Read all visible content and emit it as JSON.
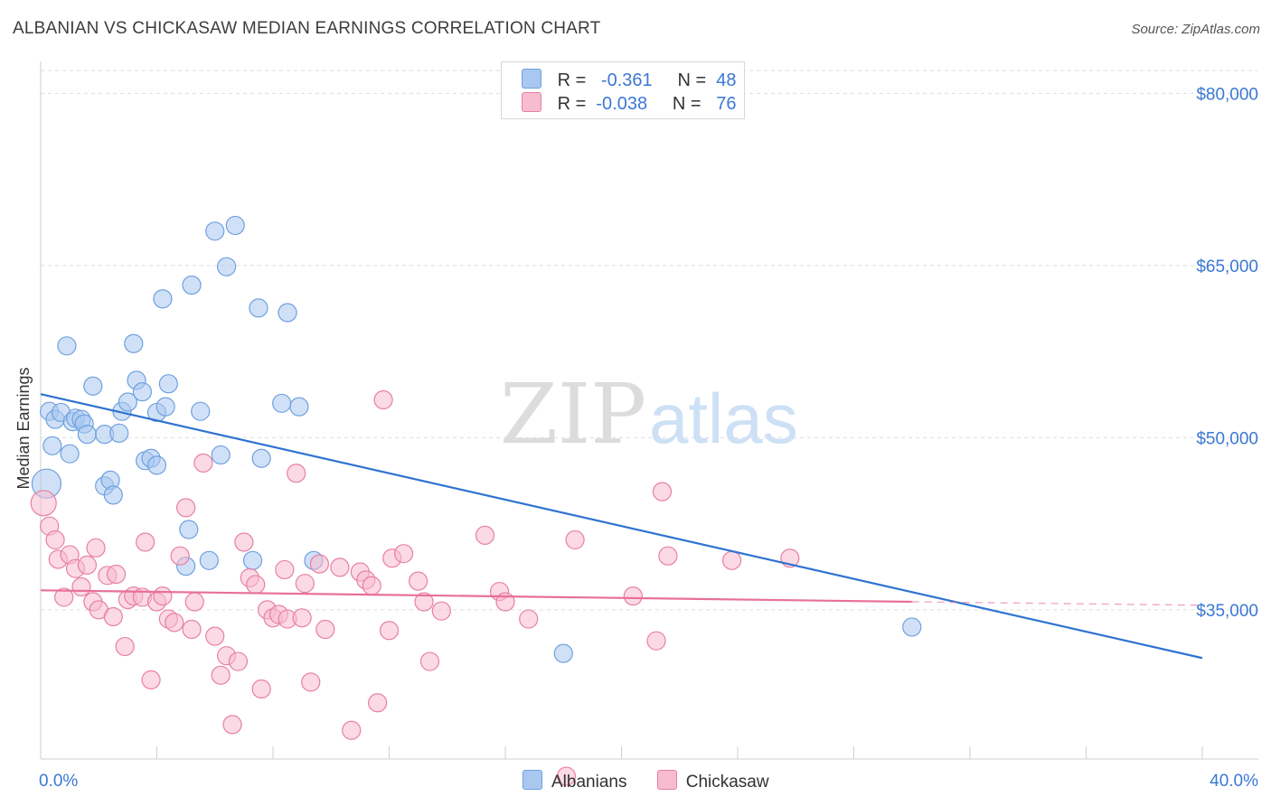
{
  "title": "ALBANIAN VS CHICKASAW MEDIAN EARNINGS CORRELATION CHART",
  "source": "Source: ZipAtlas.com",
  "watermark": {
    "zip": "ZIP",
    "atlas": "atlas"
  },
  "legend": {
    "rows": [
      {
        "r_label": "R =",
        "r_value": "-0.361",
        "n_label": "N =",
        "n_value": "48",
        "color": "#a9c8f0",
        "border": "#6fa0df"
      },
      {
        "r_label": "R =",
        "r_value": "-0.038",
        "n_label": "N =",
        "n_value": "76",
        "color": "#f7bcd0",
        "border": "#e87fa3"
      }
    ]
  },
  "bottom_legend": [
    {
      "label": "Albanians",
      "color": "#a9c8f0",
      "border": "#6fa0df"
    },
    {
      "label": "Chickasaw",
      "color": "#f7bcd0",
      "border": "#e87fa3"
    }
  ],
  "chart_data": {
    "type": "scatter",
    "title": "ALBANIAN VS CHICKASAW MEDIAN EARNINGS CORRELATION CHART",
    "xlabel": "",
    "ylabel": "Median Earnings",
    "xlim": [
      0,
      40
    ],
    "ylim": [
      22000,
      82000
    ],
    "x_tick_labels": [
      {
        "value": 0,
        "label": "0.0%"
      },
      {
        "value": 40,
        "label": "40.0%"
      }
    ],
    "x_minor_ticks": [
      4,
      8,
      12,
      16,
      20,
      24,
      28,
      32,
      36
    ],
    "y_ticks": [
      {
        "value": 35000,
        "label": "$35,000"
      },
      {
        "value": 50000,
        "label": "$50,000"
      },
      {
        "value": 65000,
        "label": "$65,000"
      },
      {
        "value": 80000,
        "label": "$80,000"
      }
    ],
    "grid": "horizontal dashed",
    "series": [
      {
        "name": "Albanians",
        "color": "#6fa0df",
        "fill": "#a9c8f0",
        "trend": {
          "x": [
            0,
            40
          ],
          "y": [
            53800,
            30800
          ],
          "color": "#2f72d0"
        },
        "points": [
          [
            0.2,
            46000,
            16
          ],
          [
            0.3,
            52300,
            10
          ],
          [
            0.4,
            49300,
            10
          ],
          [
            0.5,
            51600,
            10
          ],
          [
            0.7,
            52200,
            10
          ],
          [
            0.9,
            58000,
            10
          ],
          [
            1.0,
            48600,
            10
          ],
          [
            1.1,
            51400,
            10
          ],
          [
            1.2,
            51700,
            10
          ],
          [
            1.4,
            51600,
            10
          ],
          [
            1.5,
            51200,
            10
          ],
          [
            1.6,
            50300,
            10
          ],
          [
            1.8,
            54500,
            10
          ],
          [
            2.2,
            50300,
            10
          ],
          [
            2.2,
            45800,
            10
          ],
          [
            2.4,
            46300,
            10
          ],
          [
            2.5,
            45000,
            10
          ],
          [
            2.7,
            50400,
            10
          ],
          [
            2.8,
            52300,
            10
          ],
          [
            3.0,
            53100,
            10
          ],
          [
            3.2,
            58200,
            10
          ],
          [
            3.3,
            55000,
            10
          ],
          [
            3.5,
            54000,
            10
          ],
          [
            3.6,
            48000,
            10
          ],
          [
            3.8,
            48200,
            10
          ],
          [
            4.0,
            52200,
            10
          ],
          [
            4.0,
            47600,
            10
          ],
          [
            4.2,
            62100,
            10
          ],
          [
            4.3,
            52700,
            10
          ],
          [
            4.4,
            54700,
            10
          ],
          [
            5.0,
            38800,
            10
          ],
          [
            5.1,
            42000,
            10
          ],
          [
            5.2,
            63300,
            10
          ],
          [
            5.5,
            52300,
            10
          ],
          [
            5.8,
            39300,
            10
          ],
          [
            6.0,
            68000,
            10
          ],
          [
            6.2,
            48500,
            10
          ],
          [
            6.4,
            64900,
            10
          ],
          [
            6.7,
            68500,
            10
          ],
          [
            7.3,
            39300,
            10
          ],
          [
            7.5,
            61300,
            10
          ],
          [
            7.6,
            48200,
            10
          ],
          [
            8.3,
            53000,
            10
          ],
          [
            8.5,
            60900,
            10
          ],
          [
            8.9,
            52700,
            10
          ],
          [
            9.4,
            39300,
            10
          ],
          [
            18.0,
            31200,
            10
          ],
          [
            30.0,
            33500,
            10
          ]
        ]
      },
      {
        "name": "Chickasaw",
        "color": "#e87fa3",
        "fill": "#f7bcd0",
        "trend": {
          "x": [
            0,
            30
          ],
          "y": [
            36700,
            35700
          ],
          "dash_to": [
            40,
            35400
          ],
          "color": "#e8709a"
        },
        "points": [
          [
            0.1,
            44300,
            14
          ],
          [
            0.3,
            42300,
            10
          ],
          [
            0.5,
            41100,
            10
          ],
          [
            0.6,
            39400,
            10
          ],
          [
            0.8,
            36100,
            10
          ],
          [
            1.0,
            39800,
            10
          ],
          [
            1.2,
            38600,
            10
          ],
          [
            1.4,
            37000,
            10
          ],
          [
            1.6,
            38900,
            10
          ],
          [
            1.8,
            35700,
            10
          ],
          [
            1.9,
            40400,
            10
          ],
          [
            2.0,
            35000,
            10
          ],
          [
            2.3,
            38000,
            10
          ],
          [
            2.5,
            34400,
            10
          ],
          [
            2.6,
            38100,
            10
          ],
          [
            2.9,
            31800,
            10
          ],
          [
            3.0,
            35900,
            10
          ],
          [
            3.2,
            36200,
            10
          ],
          [
            3.5,
            36100,
            10
          ],
          [
            3.6,
            40900,
            10
          ],
          [
            3.8,
            28900,
            10
          ],
          [
            4.0,
            35700,
            10
          ],
          [
            4.2,
            36200,
            10
          ],
          [
            4.4,
            34200,
            10
          ],
          [
            4.6,
            33900,
            10
          ],
          [
            4.8,
            39700,
            10
          ],
          [
            5.0,
            43900,
            10
          ],
          [
            5.2,
            33300,
            10
          ],
          [
            5.3,
            35700,
            10
          ],
          [
            5.6,
            47800,
            10
          ],
          [
            6.0,
            32700,
            10
          ],
          [
            6.2,
            29300,
            10
          ],
          [
            6.4,
            31000,
            10
          ],
          [
            6.6,
            25000,
            10
          ],
          [
            6.8,
            30500,
            10
          ],
          [
            7.0,
            40900,
            10
          ],
          [
            7.2,
            37800,
            10
          ],
          [
            7.4,
            37200,
            10
          ],
          [
            7.6,
            28100,
            10
          ],
          [
            7.8,
            35000,
            10
          ],
          [
            8.0,
            34300,
            10
          ],
          [
            8.2,
            34600,
            10
          ],
          [
            8.4,
            38500,
            10
          ],
          [
            8.5,
            34200,
            10
          ],
          [
            8.8,
            46900,
            10
          ],
          [
            9.0,
            34300,
            10
          ],
          [
            9.1,
            37300,
            10
          ],
          [
            9.3,
            28700,
            10
          ],
          [
            9.6,
            39000,
            10
          ],
          [
            9.8,
            33300,
            10
          ],
          [
            10.3,
            38700,
            10
          ],
          [
            10.7,
            24500,
            10
          ],
          [
            11.0,
            38300,
            10
          ],
          [
            11.2,
            37600,
            10
          ],
          [
            11.4,
            37100,
            10
          ],
          [
            11.6,
            26900,
            10
          ],
          [
            11.8,
            53300,
            10
          ],
          [
            12.0,
            33200,
            10
          ],
          [
            12.1,
            39500,
            10
          ],
          [
            12.5,
            39900,
            10
          ],
          [
            13.0,
            37500,
            10
          ],
          [
            13.2,
            35700,
            10
          ],
          [
            13.4,
            30500,
            10
          ],
          [
            13.8,
            34900,
            10
          ],
          [
            15.3,
            41500,
            10
          ],
          [
            15.8,
            36600,
            10
          ],
          [
            16.0,
            35700,
            10
          ],
          [
            16.8,
            34200,
            10
          ],
          [
            18.1,
            20500,
            10
          ],
          [
            18.4,
            41100,
            10
          ],
          [
            20.4,
            36200,
            10
          ],
          [
            21.2,
            32300,
            10
          ],
          [
            21.4,
            45300,
            10
          ],
          [
            21.6,
            39700,
            10
          ],
          [
            23.8,
            39300,
            10
          ],
          [
            25.8,
            39500,
            10
          ]
        ]
      }
    ]
  }
}
